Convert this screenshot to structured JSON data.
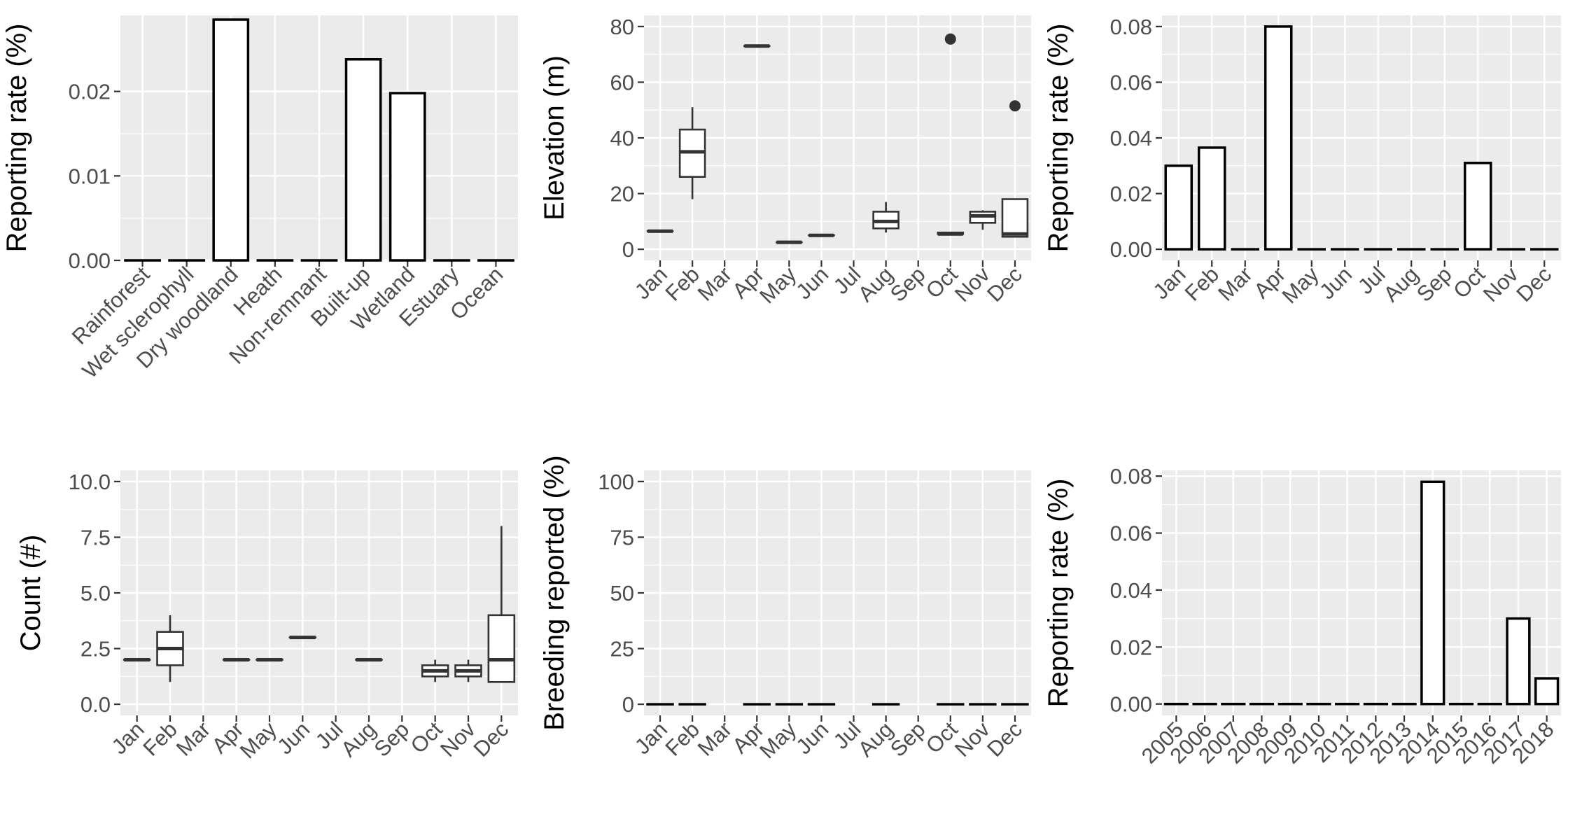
{
  "figure": {
    "background": "#ffffff",
    "panel_background": "#ebebeb",
    "grid_color": "#ffffff",
    "box_line_color": "#333333",
    "bar_line_color": "#000000"
  },
  "chart_data": [
    {
      "id": "habitat",
      "type": "bar",
      "ylabel": "Reporting rate (%)",
      "ylim": [
        0,
        0.029
      ],
      "yticks": [
        0.0,
        0.01,
        0.02
      ],
      "ytick_labels": [
        "0.00",
        "0.01",
        "0.02"
      ],
      "categories": [
        "Rainforest",
        "Wet sclerophyll",
        "Dry woodland",
        "Heath",
        "Non-remnant",
        "Built-up",
        "Wetland",
        "Estuary",
        "Ocean"
      ],
      "values": [
        0,
        0,
        0.0285,
        0,
        0,
        0.0238,
        0.0198,
        0,
        0
      ],
      "grid": true
    },
    {
      "id": "elevation",
      "type": "box",
      "ylabel": "Elevation (m)",
      "ylim": [
        -4,
        84
      ],
      "yticks": [
        0,
        20,
        40,
        60,
        80
      ],
      "ytick_labels": [
        "0",
        "20",
        "40",
        "60",
        "80"
      ],
      "categories": [
        "Jan",
        "Feb",
        "Mar",
        "Apr",
        "May",
        "Jun",
        "Jul",
        "Aug",
        "Sep",
        "Oct",
        "Nov",
        "Dec"
      ],
      "boxes": [
        {
          "category": "Jan",
          "low": 6.5,
          "q1": 6.5,
          "median": 6.5,
          "q3": 6.5,
          "high": 6.5,
          "outliers": []
        },
        {
          "category": "Feb",
          "low": 18,
          "q1": 26,
          "median": 35,
          "q3": 43,
          "high": 51,
          "outliers": []
        },
        {
          "category": "Apr",
          "low": 73,
          "q1": 73,
          "median": 73,
          "q3": 73,
          "high": 73,
          "outliers": []
        },
        {
          "category": "May",
          "low": 2.5,
          "q1": 2.5,
          "median": 2.5,
          "q3": 2.5,
          "high": 2.5,
          "outliers": []
        },
        {
          "category": "Jun",
          "low": 5,
          "q1": 5,
          "median": 5,
          "q3": 5,
          "high": 5,
          "outliers": []
        },
        {
          "category": "Aug",
          "low": 6,
          "q1": 7.5,
          "median": 10,
          "q3": 13.5,
          "high": 17,
          "outliers": []
        },
        {
          "category": "Oct",
          "low": 5.5,
          "q1": 5.5,
          "median": 5.5,
          "q3": 6,
          "high": 6,
          "outliers": [
            75.5
          ]
        },
        {
          "category": "Nov",
          "low": 7,
          "q1": 9.5,
          "median": 12,
          "q3": 13.5,
          "high": 14,
          "outliers": []
        },
        {
          "category": "Dec",
          "low": 4.5,
          "q1": 4.5,
          "median": 5.5,
          "q3": 18,
          "high": 18,
          "outliers": [
            51.5
          ]
        }
      ],
      "grid": true
    },
    {
      "id": "monthly-rate",
      "type": "bar",
      "ylabel": "Reporting rate (%)",
      "ylim": [
        -0.004,
        0.084
      ],
      "yticks": [
        0.0,
        0.02,
        0.04,
        0.06,
        0.08
      ],
      "ytick_labels": [
        "0.00",
        "0.02",
        "0.04",
        "0.06",
        "0.08"
      ],
      "categories": [
        "Jan",
        "Feb",
        "Mar",
        "Apr",
        "May",
        "Jun",
        "Jul",
        "Aug",
        "Sep",
        "Oct",
        "Nov",
        "Dec"
      ],
      "values": [
        0.03,
        0.0365,
        0,
        0.08,
        0,
        0,
        0,
        0,
        0,
        0.031,
        0,
        0
      ],
      "grid": true
    },
    {
      "id": "count",
      "type": "box",
      "ylabel": "Count (#)",
      "ylim": [
        -0.5,
        10.5
      ],
      "yticks": [
        0,
        2.5,
        5,
        7.5,
        10
      ],
      "ytick_labels": [
        "0.0",
        "2.5",
        "5.0",
        "7.5",
        "10.0"
      ],
      "categories": [
        "Jan",
        "Feb",
        "Mar",
        "Apr",
        "May",
        "Jun",
        "Jul",
        "Aug",
        "Sep",
        "Oct",
        "Nov",
        "Dec"
      ],
      "boxes": [
        {
          "category": "Jan",
          "low": 2,
          "q1": 2,
          "median": 2,
          "q3": 2,
          "high": 2,
          "outliers": []
        },
        {
          "category": "Feb",
          "low": 1,
          "q1": 1.75,
          "median": 2.5,
          "q3": 3.25,
          "high": 4,
          "outliers": []
        },
        {
          "category": "Apr",
          "low": 2,
          "q1": 2,
          "median": 2,
          "q3": 2,
          "high": 2,
          "outliers": []
        },
        {
          "category": "May",
          "low": 2,
          "q1": 2,
          "median": 2,
          "q3": 2,
          "high": 2,
          "outliers": []
        },
        {
          "category": "Jun",
          "low": 3,
          "q1": 3,
          "median": 3,
          "q3": 3,
          "high": 3,
          "outliers": []
        },
        {
          "category": "Aug",
          "low": 2,
          "q1": 2,
          "median": 2,
          "q3": 2,
          "high": 2,
          "outliers": []
        },
        {
          "category": "Oct",
          "low": 1,
          "q1": 1.25,
          "median": 1.5,
          "q3": 1.75,
          "high": 2,
          "outliers": []
        },
        {
          "category": "Nov",
          "low": 1,
          "q1": 1.25,
          "median": 1.5,
          "q3": 1.75,
          "high": 2,
          "outliers": []
        },
        {
          "category": "Dec",
          "low": 1,
          "q1": 1,
          "median": 2,
          "q3": 4,
          "high": 8,
          "outliers": []
        }
      ],
      "grid": true
    },
    {
      "id": "breeding",
      "type": "bar",
      "ylabel": "Breeding reported (%)",
      "ylim": [
        -5,
        105
      ],
      "yticks": [
        0,
        25,
        50,
        75,
        100
      ],
      "ytick_labels": [
        "0",
        "25",
        "50",
        "75",
        "100"
      ],
      "categories": [
        "Jan",
        "Feb",
        "Mar",
        "Apr",
        "May",
        "Jun",
        "Jul",
        "Aug",
        "Sep",
        "Oct",
        "Nov",
        "Dec"
      ],
      "values": [
        0,
        0,
        null,
        0,
        0,
        0,
        null,
        0,
        null,
        0,
        0,
        0
      ],
      "grid": true
    },
    {
      "id": "yearly-rate",
      "type": "bar",
      "ylabel": "Reporting rate (%)",
      "ylim": [
        -0.004,
        0.082
      ],
      "yticks": [
        0.0,
        0.02,
        0.04,
        0.06,
        0.08
      ],
      "ytick_labels": [
        "0.00",
        "0.02",
        "0.04",
        "0.06",
        "0.08"
      ],
      "categories": [
        "2005",
        "2006",
        "2007",
        "2008",
        "2009",
        "2010",
        "2011",
        "2012",
        "2013",
        "2014",
        "2015",
        "2016",
        "2017",
        "2018"
      ],
      "values": [
        0,
        0,
        0,
        0,
        0,
        0,
        0,
        0,
        0,
        0.078,
        0,
        0,
        0.03,
        0.009
      ],
      "grid": true
    }
  ]
}
